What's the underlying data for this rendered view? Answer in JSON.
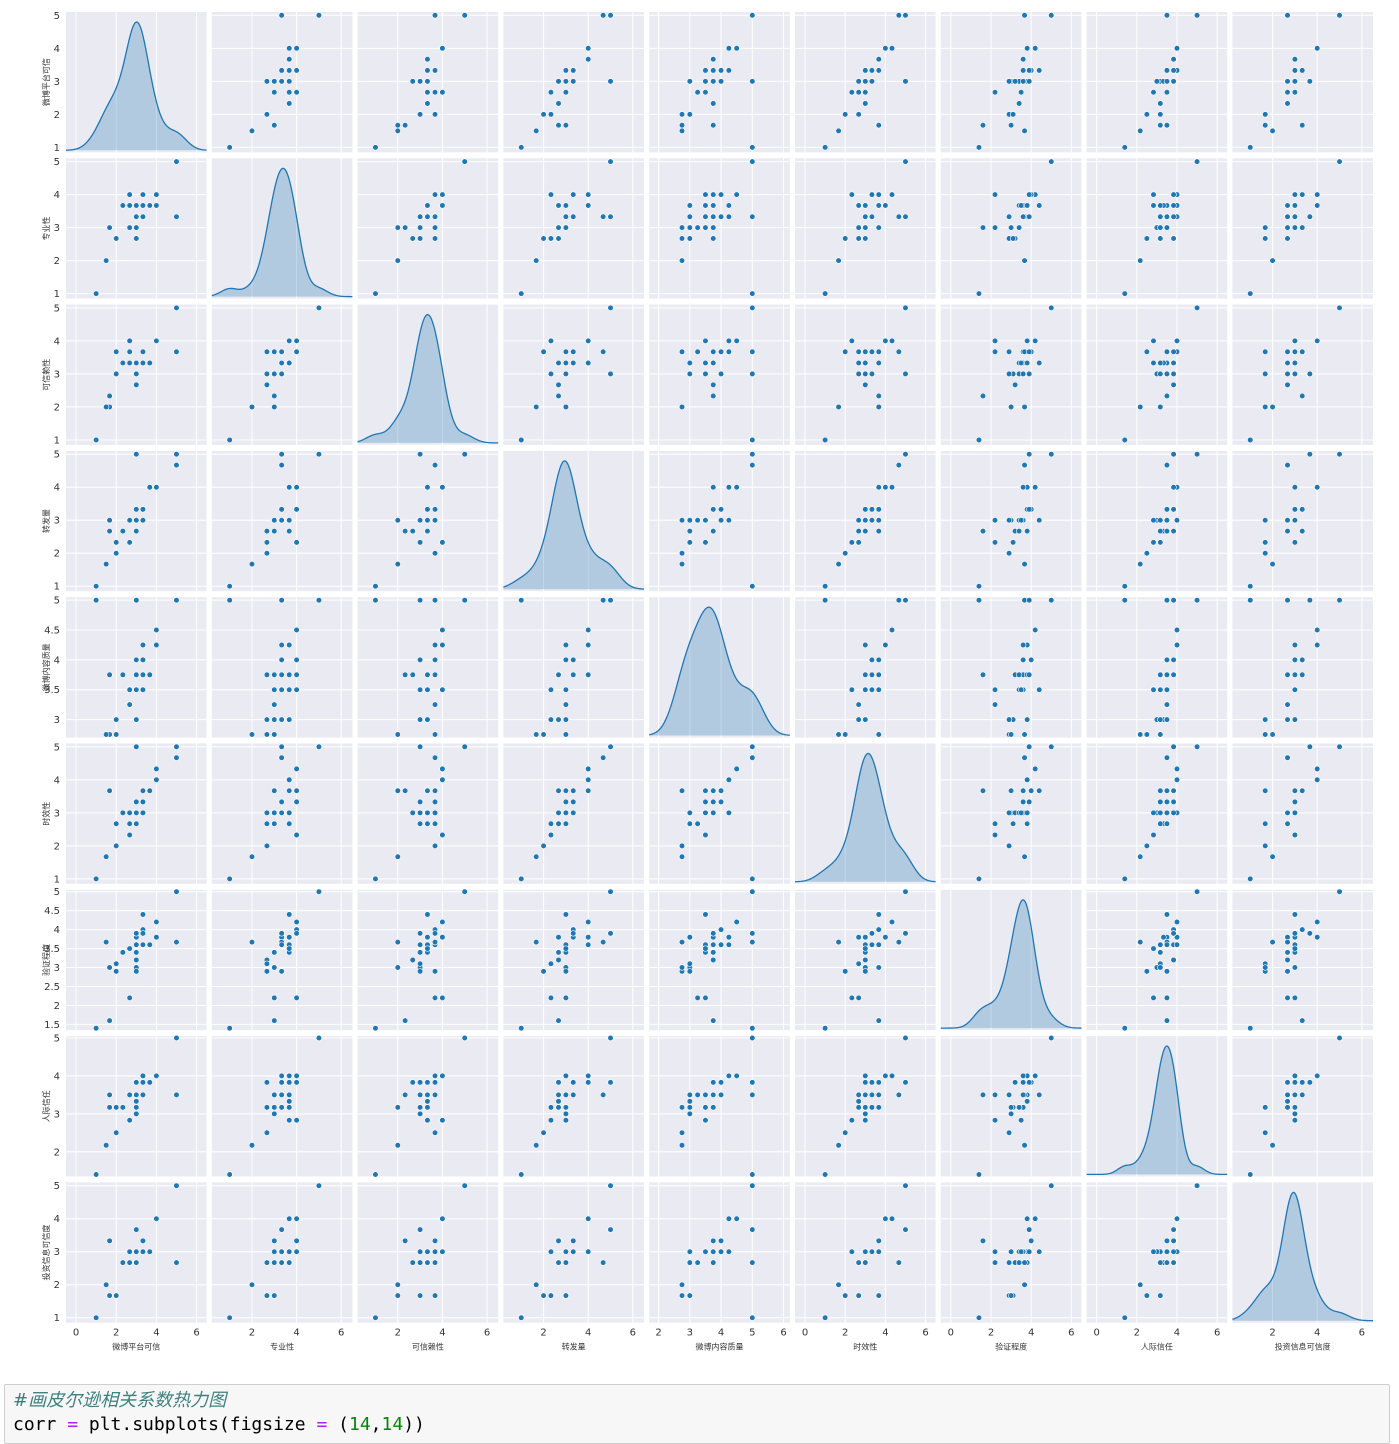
{
  "variables": [
    "微博平台可信",
    "专业性",
    "可信赖性",
    "转发量",
    "微博内容质量",
    "时效性",
    "验证程度",
    "人际信任",
    "投资信息可信度"
  ],
  "code_cell": {
    "comment": "#画皮尔逊相关系数热力图",
    "line2_prefix": "corr ",
    "line2_eq1": "=",
    "line2_mid": " plt.subplots(figsize ",
    "line2_eq2": "=",
    "line2_open": " (",
    "line2_n1": "14",
    "line2_comma": ",",
    "line2_n2": "14",
    "line2_close": "))"
  },
  "chart_data": {
    "type": "scatter",
    "kind": "pairplot",
    "diag_kind": "kde",
    "color": "#1f77b4",
    "grid": true,
    "x_ticks": [
      [
        0,
        2,
        4,
        6
      ],
      [
        2,
        4,
        6
      ],
      [
        2,
        4,
        6
      ],
      [
        2,
        4,
        6
      ],
      [
        2,
        3,
        4,
        5,
        6
      ],
      [
        0,
        2,
        4,
        6
      ],
      [
        0,
        2,
        4,
        6
      ],
      [
        0,
        2,
        4,
        6
      ],
      [
        2,
        4,
        6
      ]
    ],
    "x_limits": [
      [
        -0.5,
        6.5
      ],
      [
        0.2,
        6.5
      ],
      [
        0.2,
        6.5
      ],
      [
        0.2,
        6.5
      ],
      [
        1.7,
        6.2
      ],
      [
        -0.5,
        6.5
      ],
      [
        -0.5,
        6.5
      ],
      [
        -0.5,
        6.5
      ],
      [
        0.2,
        6.5
      ]
    ],
    "y_ticks": [
      [
        1,
        2,
        3,
        4,
        5
      ],
      [
        1,
        2,
        3,
        4,
        5
      ],
      [
        1,
        2,
        3,
        4,
        5
      ],
      [
        1,
        2,
        3,
        4,
        5
      ],
      [
        3.0,
        3.5,
        4.0,
        4.5,
        5.0
      ],
      [
        1,
        2,
        3,
        4,
        5
      ],
      [
        1.5,
        2.0,
        2.5,
        3.0,
        3.5,
        4.0,
        4.5,
        5.0
      ],
      [
        2,
        3,
        4,
        5
      ],
      [
        1,
        2,
        3,
        4,
        5
      ]
    ],
    "y_limits": [
      [
        0.85,
        5.1
      ],
      [
        0.85,
        5.1
      ],
      [
        0.85,
        5.1
      ],
      [
        0.85,
        5.1
      ],
      [
        2.7,
        5.05
      ],
      [
        0.85,
        5.1
      ],
      [
        1.35,
        5.05
      ],
      [
        1.35,
        5.05
      ],
      [
        0.85,
        5.1
      ]
    ],
    "data": [
      [
        5.0,
        5.0,
        5.0,
        5.0,
        5.0,
        5.0,
        5.0,
        5.0,
        5.0
      ],
      [
        4.0,
        4.0,
        4.0,
        4.0,
        4.5,
        4.33,
        4.2,
        4.0,
        4.0
      ],
      [
        4.0,
        3.67,
        4.0,
        4.0,
        4.25,
        4.0,
        3.8,
        4.0,
        4.0
      ],
      [
        3.67,
        3.67,
        3.33,
        4.0,
        3.75,
        3.67,
        3.6,
        3.83,
        3.0
      ],
      [
        3.33,
        4.0,
        3.67,
        3.33,
        4.0,
        3.67,
        4.0,
        3.83,
        3.33
      ],
      [
        3.33,
        3.33,
        3.67,
        3.0,
        4.25,
        3.0,
        3.6,
        4.0,
        3.0
      ],
      [
        3.33,
        3.67,
        3.33,
        3.0,
        3.5,
        3.67,
        4.4,
        3.5,
        3.0
      ],
      [
        3.0,
        3.33,
        3.33,
        3.33,
        3.75,
        3.0,
        3.8,
        3.5,
        3.0
      ],
      [
        3.0,
        3.33,
        3.0,
        3.0,
        3.5,
        3.33,
        3.6,
        3.17,
        3.0
      ],
      [
        3.0,
        3.0,
        3.0,
        3.0,
        3.5,
        3.0,
        3.4,
        3.17,
        3.0
      ],
      [
        3.0,
        3.0,
        3.0,
        3.0,
        3.0,
        3.0,
        3.0,
        3.0,
        3.0
      ],
      [
        3.0,
        3.67,
        3.33,
        2.67,
        3.0,
        2.67,
        3.8,
        3.33,
        2.67
      ],
      [
        3.0,
        2.67,
        2.67,
        2.67,
        3.75,
        3.0,
        3.2,
        3.83,
        2.67
      ],
      [
        2.67,
        3.0,
        3.67,
        3.0,
        3.25,
        2.67,
        2.2,
        3.5,
        2.67
      ],
      [
        2.67,
        4.0,
        4.0,
        2.33,
        3.5,
        2.33,
        2.2,
        2.83,
        3.0
      ],
      [
        2.33,
        3.67,
        3.33,
        2.67,
        3.75,
        3.0,
        3.4,
        3.17,
        2.67
      ],
      [
        2.0,
        2.67,
        3.67,
        2.0,
        2.75,
        2.0,
        2.9,
        2.5,
        1.67
      ],
      [
        2.0,
        2.67,
        3.0,
        2.33,
        3.0,
        2.67,
        3.1,
        3.17,
        1.67
      ],
      [
        1.67,
        3.0,
        2.33,
        2.67,
        3.75,
        3.67,
        1.6,
        3.5,
        3.33
      ],
      [
        1.67,
        3.0,
        2.0,
        3.0,
        2.75,
        3.67,
        3.0,
        3.17,
        1.67
      ],
      [
        1.5,
        2.0,
        2.0,
        1.67,
        2.75,
        1.67,
        3.67,
        2.17,
        2.0
      ],
      [
        1.0,
        1.0,
        1.0,
        1.0,
        5.0,
        1.0,
        1.4,
        1.4,
        1.0
      ],
      [
        5.0,
        3.33,
        3.67,
        4.67,
        5.0,
        4.67,
        3.67,
        3.5,
        2.67
      ],
      [
        3.0,
        3.33,
        3.0,
        5.0,
        5.0,
        5.0,
        3.9,
        3.83,
        3.67
      ],
      [
        3.0,
        3.33,
        3.0,
        3.0,
        4.0,
        3.33,
        3.6,
        3.5,
        3.0
      ],
      [
        3.0,
        3.33,
        3.0,
        3.0,
        3.0,
        3.0,
        2.9,
        3.5,
        2.67
      ],
      [
        2.67,
        3.67,
        3.33,
        3.0,
        3.5,
        3.0,
        3.5,
        2.83,
        3.0
      ],
      [
        3.33,
        4.0,
        3.67,
        3.33,
        3.75,
        3.33,
        3.9,
        3.83,
        3.0
      ]
    ]
  }
}
